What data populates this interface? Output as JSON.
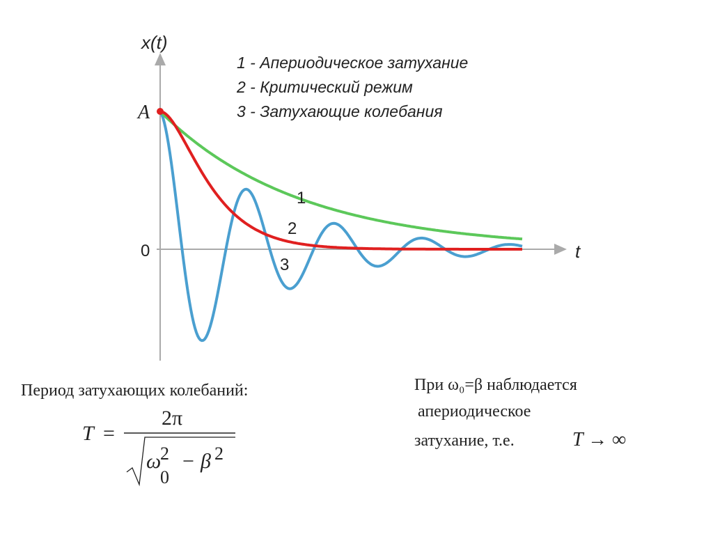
{
  "diagram": {
    "y_axis_label": "x(t)",
    "x_axis_label": "t",
    "amplitude_label": "A",
    "origin_label": "0",
    "legend": [
      "1 - Апериодическое затухание",
      "2 - Критический режим",
      "3 - Затухающие колебания"
    ],
    "curve_labels": [
      "1",
      "2",
      "3"
    ]
  },
  "period": {
    "caption": "Период затухающих колебаний:",
    "lhs": "T",
    "eq": "=",
    "numerator": "2π",
    "omega": "ω",
    "omega_sup": "2",
    "omega_sub": "0",
    "minus": "−",
    "beta": "β",
    "beta_sup": "2"
  },
  "note": {
    "lines": [
      "При ω₀=β наблюдается",
      "апериодическое",
      "затухание, т.е."
    ],
    "formula": "T → ∞"
  }
}
